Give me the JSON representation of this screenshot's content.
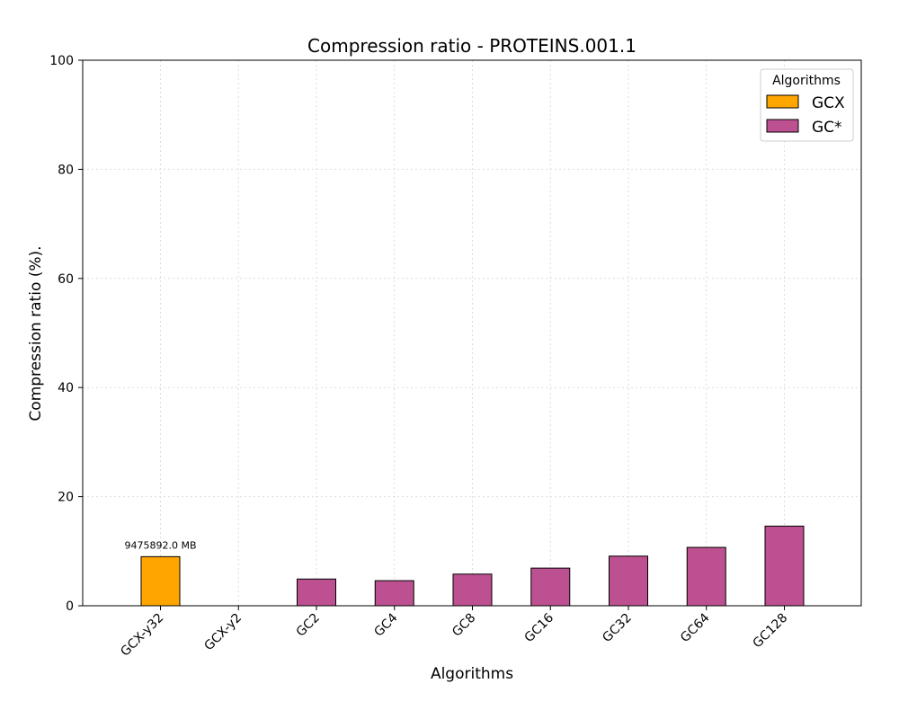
{
  "chart_data": {
    "type": "bar",
    "title": "Compression ratio -  PROTEINS.001.1",
    "xlabel": "Algorithms",
    "ylabel": "Compression ratio (%).",
    "ylim": [
      0,
      100
    ],
    "yticks": [
      0,
      20,
      40,
      60,
      80,
      100
    ],
    "grid": true,
    "legend_position": "top-right",
    "categories": [
      "GCX-y32",
      "GCX-y2",
      "GC2",
      "GC4",
      "GC8",
      "GC16",
      "GC32",
      "GC64",
      "GC128"
    ],
    "values": [
      9.0,
      0,
      4.9,
      4.6,
      5.8,
      6.9,
      9.1,
      10.7,
      14.6
    ],
    "bar_groups": [
      "GCX",
      "GCX",
      "GC*",
      "GC*",
      "GC*",
      "GC*",
      "GC*",
      "GC*",
      "GC*"
    ],
    "bar_labels": [
      "9475892.0 MB",
      "",
      "",
      "",
      "",
      "",
      "",
      "",
      ""
    ],
    "legend": {
      "title": "Algorithms",
      "entries": [
        {
          "name": "GCX",
          "color": "#FFA500"
        },
        {
          "name": "GC*",
          "color": "#BC5090"
        }
      ]
    }
  }
}
